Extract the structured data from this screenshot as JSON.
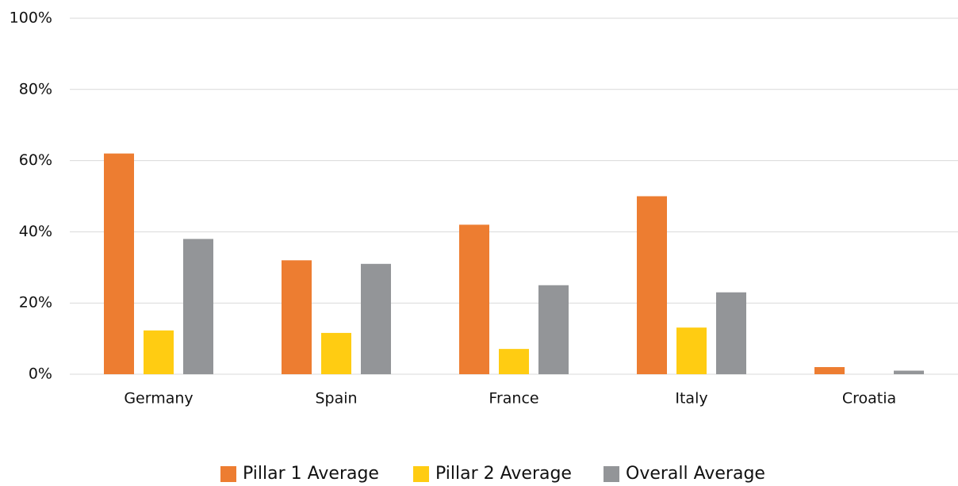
{
  "chart_data": {
    "type": "bar",
    "categories": [
      "Germany",
      "Spain",
      "France",
      "Italy",
      "Croatia"
    ],
    "series": [
      {
        "name": "Pillar 1 Average",
        "color": "#ed7d31",
        "values": [
          62,
          32,
          42,
          50,
          2
        ]
      },
      {
        "name": "Pillar 2 Average",
        "color": "#ffcc12",
        "values": [
          12.3,
          11.6,
          7.1,
          13.1,
          0
        ]
      },
      {
        "name": "Overall Average",
        "color": "#939598",
        "values": [
          38,
          31,
          25,
          23,
          1
        ]
      }
    ],
    "ylim": [
      0,
      100
    ],
    "yticks": [
      {
        "value": 0,
        "label": "0%"
      },
      {
        "value": 20,
        "label": "20%"
      },
      {
        "value": 40,
        "label": "40%"
      },
      {
        "value": 60,
        "label": "60%"
      },
      {
        "value": 80,
        "label": "80%"
      },
      {
        "value": 100,
        "label": "100%"
      }
    ],
    "grid": true,
    "legend": "bottom"
  }
}
